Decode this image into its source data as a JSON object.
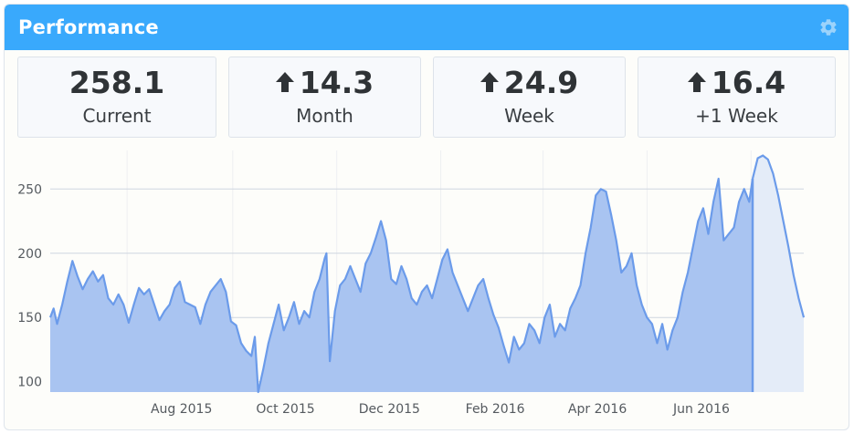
{
  "panel": {
    "title": "Performance",
    "settings_icon": "gear-icon",
    "accent_color": "#39a9fc"
  },
  "stats": [
    {
      "value": "258.1",
      "label": "Current",
      "trend": "none"
    },
    {
      "value": "14.3",
      "label": "Month",
      "trend": "up",
      "trend_icon": "arrow-up-icon"
    },
    {
      "value": "24.9",
      "label": "Week",
      "trend": "up",
      "trend_icon": "arrow-up-icon"
    },
    {
      "value": "16.4",
      "label": "+1 Week",
      "trend": "up",
      "trend_icon": "arrow-up-icon"
    }
  ],
  "chart_data": {
    "type": "area",
    "x_tick_labels": [
      "Aug 2015",
      "Oct 2015",
      "Dec 2015",
      "Feb 2016",
      "Apr 2016",
      "Jun 2016"
    ],
    "y_ticks": [
      100,
      150,
      200,
      250
    ],
    "ylim": [
      92,
      280
    ],
    "grid": true,
    "series": [
      {
        "points": [
          [
            "2015-06-01",
            150
          ],
          [
            "2015-06-03",
            157
          ],
          [
            "2015-06-05",
            145
          ],
          [
            "2015-06-08",
            160
          ],
          [
            "2015-06-11",
            178
          ],
          [
            "2015-06-14",
            194
          ],
          [
            "2015-06-17",
            182
          ],
          [
            "2015-06-20",
            172
          ],
          [
            "2015-06-23",
            180
          ],
          [
            "2015-06-26",
            186
          ],
          [
            "2015-06-29",
            178
          ],
          [
            "2015-07-02",
            183
          ],
          [
            "2015-07-05",
            165
          ],
          [
            "2015-07-08",
            160
          ],
          [
            "2015-07-11",
            168
          ],
          [
            "2015-07-14",
            160
          ],
          [
            "2015-07-17",
            146
          ],
          [
            "2015-07-20",
            160
          ],
          [
            "2015-07-23",
            173
          ],
          [
            "2015-07-26",
            168
          ],
          [
            "2015-07-29",
            172
          ],
          [
            "2015-08-01",
            160
          ],
          [
            "2015-08-04",
            148
          ],
          [
            "2015-08-07",
            155
          ],
          [
            "2015-08-10",
            160
          ],
          [
            "2015-08-13",
            173
          ],
          [
            "2015-08-16",
            178
          ],
          [
            "2015-08-19",
            162
          ],
          [
            "2015-08-22",
            160
          ],
          [
            "2015-08-25",
            158
          ],
          [
            "2015-08-28",
            145
          ],
          [
            "2015-08-31",
            160
          ],
          [
            "2015-09-03",
            170
          ],
          [
            "2015-09-06",
            175
          ],
          [
            "2015-09-09",
            180
          ],
          [
            "2015-09-12",
            170
          ],
          [
            "2015-09-15",
            147
          ],
          [
            "2015-09-18",
            144
          ],
          [
            "2015-09-21",
            130
          ],
          [
            "2015-09-24",
            124
          ],
          [
            "2015-09-27",
            120
          ],
          [
            "2015-09-29",
            135
          ],
          [
            "2015-10-01",
            92
          ],
          [
            "2015-10-04",
            110
          ],
          [
            "2015-10-07",
            130
          ],
          [
            "2015-10-10",
            145
          ],
          [
            "2015-10-13",
            160
          ],
          [
            "2015-10-16",
            140
          ],
          [
            "2015-10-19",
            150
          ],
          [
            "2015-10-22",
            162
          ],
          [
            "2015-10-25",
            145
          ],
          [
            "2015-10-28",
            155
          ],
          [
            "2015-10-31",
            150
          ],
          [
            "2015-11-03",
            170
          ],
          [
            "2015-11-06",
            180
          ],
          [
            "2015-11-09",
            196
          ],
          [
            "2015-11-10",
            200
          ],
          [
            "2015-11-12",
            116
          ],
          [
            "2015-11-15",
            155
          ],
          [
            "2015-11-18",
            175
          ],
          [
            "2015-11-21",
            180
          ],
          [
            "2015-11-24",
            190
          ],
          [
            "2015-11-27",
            180
          ],
          [
            "2015-11-30",
            170
          ],
          [
            "2015-12-03",
            192
          ],
          [
            "2015-12-06",
            200
          ],
          [
            "2015-12-09",
            212
          ],
          [
            "2015-12-12",
            225
          ],
          [
            "2015-12-15",
            210
          ],
          [
            "2015-12-18",
            180
          ],
          [
            "2015-12-21",
            176
          ],
          [
            "2015-12-24",
            190
          ],
          [
            "2015-12-27",
            180
          ],
          [
            "2015-12-30",
            165
          ],
          [
            "2016-01-02",
            160
          ],
          [
            "2016-01-05",
            170
          ],
          [
            "2016-01-08",
            175
          ],
          [
            "2016-01-11",
            165
          ],
          [
            "2016-01-14",
            180
          ],
          [
            "2016-01-17",
            195
          ],
          [
            "2016-01-20",
            203
          ],
          [
            "2016-01-23",
            185
          ],
          [
            "2016-01-26",
            175
          ],
          [
            "2016-01-29",
            165
          ],
          [
            "2016-02-01",
            155
          ],
          [
            "2016-02-04",
            165
          ],
          [
            "2016-02-07",
            175
          ],
          [
            "2016-02-10",
            180
          ],
          [
            "2016-02-13",
            165
          ],
          [
            "2016-02-16",
            152
          ],
          [
            "2016-02-19",
            142
          ],
          [
            "2016-02-22",
            128
          ],
          [
            "2016-02-25",
            115
          ],
          [
            "2016-02-28",
            135
          ],
          [
            "2016-03-02",
            125
          ],
          [
            "2016-03-05",
            130
          ],
          [
            "2016-03-08",
            145
          ],
          [
            "2016-03-11",
            140
          ],
          [
            "2016-03-14",
            130
          ],
          [
            "2016-03-17",
            150
          ],
          [
            "2016-03-20",
            160
          ],
          [
            "2016-03-23",
            135
          ],
          [
            "2016-03-26",
            145
          ],
          [
            "2016-03-29",
            140
          ],
          [
            "2016-04-01",
            157
          ],
          [
            "2016-04-04",
            165
          ],
          [
            "2016-04-07",
            175
          ],
          [
            "2016-04-10",
            200
          ],
          [
            "2016-04-13",
            220
          ],
          [
            "2016-04-16",
            245
          ],
          [
            "2016-04-19",
            250
          ],
          [
            "2016-04-22",
            248
          ],
          [
            "2016-04-25",
            230
          ],
          [
            "2016-04-28",
            210
          ],
          [
            "2016-05-01",
            185
          ],
          [
            "2016-05-04",
            190
          ],
          [
            "2016-05-07",
            200
          ],
          [
            "2016-05-10",
            175
          ],
          [
            "2016-05-13",
            160
          ],
          [
            "2016-05-16",
            150
          ],
          [
            "2016-05-19",
            145
          ],
          [
            "2016-05-22",
            130
          ],
          [
            "2016-05-25",
            145
          ],
          [
            "2016-05-28",
            125
          ],
          [
            "2016-05-31",
            140
          ],
          [
            "2016-06-03",
            150
          ],
          [
            "2016-06-06",
            170
          ],
          [
            "2016-06-09",
            185
          ],
          [
            "2016-06-12",
            205
          ],
          [
            "2016-06-15",
            225
          ],
          [
            "2016-06-18",
            235
          ],
          [
            "2016-06-21",
            215
          ],
          [
            "2016-06-24",
            240
          ],
          [
            "2016-06-27",
            258
          ],
          [
            "2016-06-30",
            210
          ],
          [
            "2016-07-03",
            215
          ],
          [
            "2016-07-06",
            220
          ],
          [
            "2016-07-09",
            240
          ],
          [
            "2016-07-12",
            250
          ],
          [
            "2016-07-15",
            240
          ],
          [
            "2016-07-17",
            258
          ]
        ]
      },
      {
        "projection": true,
        "points": [
          [
            "2016-07-17",
            258
          ],
          [
            "2016-07-20",
            274
          ],
          [
            "2016-07-23",
            276
          ],
          [
            "2016-07-26",
            273
          ],
          [
            "2016-07-29",
            262
          ],
          [
            "2016-08-01",
            245
          ],
          [
            "2016-08-04",
            225
          ],
          [
            "2016-08-07",
            205
          ],
          [
            "2016-08-10",
            183
          ],
          [
            "2016-08-13",
            165
          ],
          [
            "2016-08-16",
            150
          ]
        ]
      }
    ],
    "marker_date": "2016-07-17",
    "colors": {
      "line": "#6b9bea",
      "fill": "#a9c4f1",
      "projection_fill": "#e4ecf8",
      "grid": "#cfd6df",
      "label": "#555a5f"
    }
  }
}
